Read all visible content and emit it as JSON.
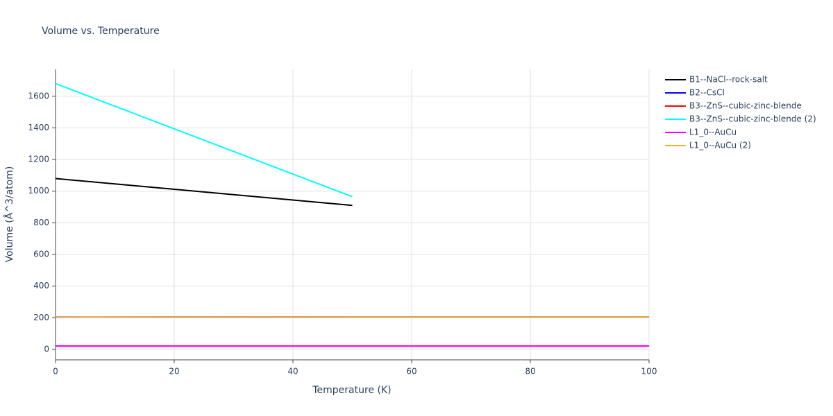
{
  "chart_data": {
    "type": "line",
    "title": "Volume vs. Temperature",
    "x_label": "Temperature (K)",
    "y_label": "Volume (Å^3/atom)",
    "xlim": [
      0,
      100
    ],
    "xticks": [
      0,
      20,
      40,
      60,
      80,
      100
    ],
    "ylim": [
      -66,
      1770
    ],
    "yticks": [
      0,
      200,
      400,
      600,
      800,
      1000,
      1200,
      1400,
      1600
    ],
    "grid": true,
    "legend": "right",
    "series": [
      {
        "name": "B1--NaCl--rock-salt",
        "color": "#000000",
        "x": [
          0,
          10,
          20,
          30,
          40,
          50
        ],
        "values": [
          1080,
          1046,
          1012,
          978,
          944,
          910
        ]
      },
      {
        "name": "B2--CsCl",
        "color": "#0000ff",
        "x": [
          0,
          50,
          100
        ],
        "values": [
          204,
          205,
          205
        ]
      },
      {
        "name": "B3--ZnS--cubic-zinc-blende",
        "color": "#ff0000",
        "x": [
          0,
          50,
          100
        ],
        "values": [
          21,
          21,
          21
        ]
      },
      {
        "name": "B3--ZnS--cubic-zinc-blende (2)",
        "color": "#00ffff",
        "x": [
          0,
          10,
          20,
          30,
          40,
          50
        ],
        "values": [
          1680,
          1537,
          1394,
          1251,
          1108,
          965
        ]
      },
      {
        "name": "L1_0--AuCu",
        "color": "#ff00ff",
        "x": [
          0,
          50,
          100
        ],
        "values": [
          21,
          21,
          21
        ]
      },
      {
        "name": "L1_0--AuCu (2)",
        "color": "#f0b030",
        "x": [
          0,
          50,
          100
        ],
        "values": [
          203,
          205,
          205
        ]
      }
    ]
  }
}
